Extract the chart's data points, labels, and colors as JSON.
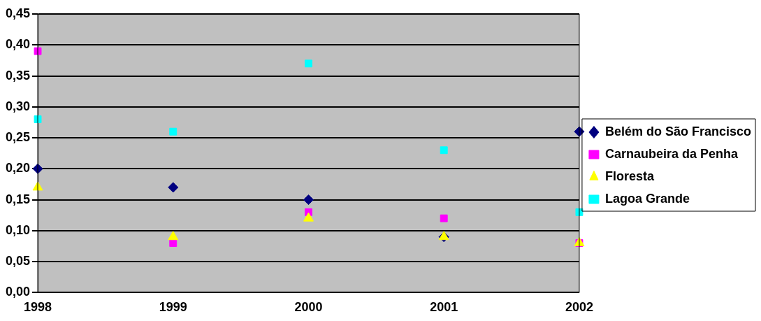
{
  "chart_data": {
    "type": "scatter",
    "x": [
      1998,
      1999,
      2000,
      2001,
      2002
    ],
    "xlim": [
      1998,
      2002
    ],
    "xticks": [
      1998,
      1999,
      2000,
      2001,
      2002
    ],
    "ylim": [
      0,
      0.45
    ],
    "yticks": [
      {
        "value": 0,
        "label": "0,00"
      },
      {
        "value": 0.05,
        "label": "0,05"
      },
      {
        "value": 0.1,
        "label": "0,10"
      },
      {
        "value": 0.15,
        "label": "0,15"
      },
      {
        "value": 0.2,
        "label": "0,20"
      },
      {
        "value": 0.25,
        "label": "0,25"
      },
      {
        "value": 0.3,
        "label": "0,30"
      },
      {
        "value": 0.35,
        "label": "0,35"
      },
      {
        "value": 0.4,
        "label": "0,40"
      },
      {
        "value": 0.45,
        "label": "0,45"
      }
    ],
    "grid": "y",
    "legend": "right",
    "series": [
      {
        "name": "Belém do São Francisco",
        "color": "#000080",
        "marker": "diamond",
        "values": [
          0.2,
          0.17,
          0.15,
          0.09,
          0.26
        ]
      },
      {
        "name": "Carnaubeira da Penha",
        "color": "#ff00ff",
        "marker": "square",
        "values": [
          0.39,
          0.08,
          0.13,
          0.12,
          0.08
        ]
      },
      {
        "name": "Floresta",
        "color": "#ffff00",
        "marker": "triangle",
        "values": [
          0.17,
          0.09,
          0.12,
          0.09,
          0.08
        ]
      },
      {
        "name": "Lagoa Grande",
        "color": "#00ffff",
        "marker": "square",
        "values": [
          0.28,
          0.26,
          0.37,
          0.23,
          0.13
        ]
      }
    ]
  }
}
